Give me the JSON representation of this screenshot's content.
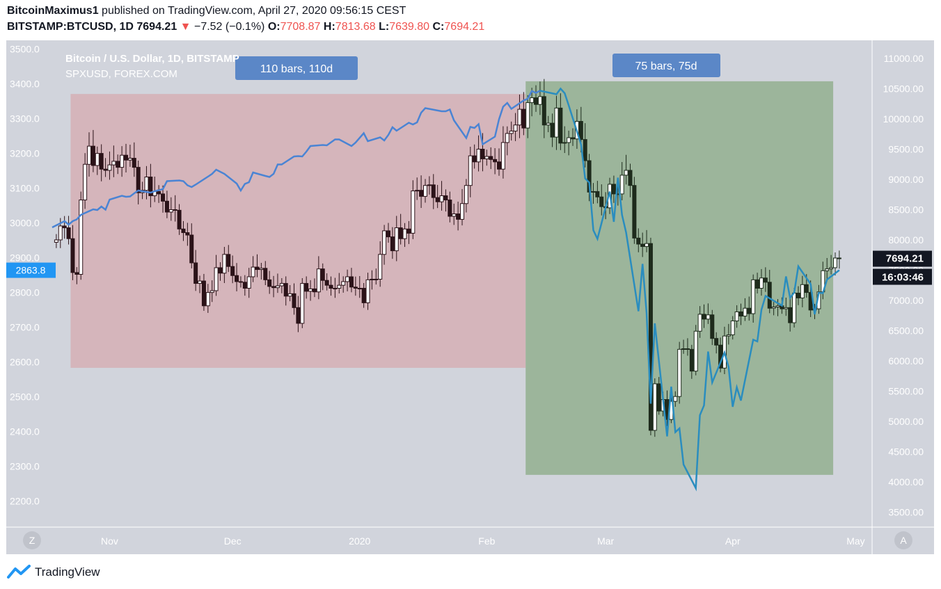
{
  "header": {
    "author": "BitcoinMaximus1",
    "published": "published on TradingView.com, April 27, 2020 09:56:15 CEST",
    "symbol": "BITSTAMP:BTCUSD, 1D",
    "last": "7694.21",
    "down_arrow": "▼",
    "change": "−7.52 (−0.1%)",
    "o_label": "O:",
    "o_val": "7708.87",
    "h_label": "H:",
    "h_val": "7813.68",
    "l_label": "L:",
    "l_val": "7639.80",
    "c_label": "C:",
    "c_val": "7694.21"
  },
  "legend": {
    "main": "Bitcoin / U.S. Dollar, 1D, BITSTAMP",
    "compare": "SPXUSD, FOREX.COM"
  },
  "ranges": [
    {
      "label": "110 bars, 110d",
      "color": "#d5b5bb",
      "start": "2019-10-23",
      "end": "2020-02-10"
    },
    {
      "label": "75 bars, 75d",
      "color": "#9cb59b",
      "start": "2020-02-11",
      "end": "2020-04-25"
    }
  ],
  "badges": {
    "left_value": "2863.8",
    "price": "7694.21",
    "countdown": "16:03:46",
    "z_button": "Z",
    "a_button": "A"
  },
  "footer": {
    "brand": "TradingView"
  },
  "colors": {
    "background": "#d1d4dc",
    "spx_line_before": "#4a84d4",
    "spx_line_after": "#2a8dbf",
    "candle_before": "#2b1218",
    "candle_after": "#1e2b1c",
    "label_box": "#5b87c7",
    "left_badge": "#2196f3",
    "right_badge": "#131722"
  },
  "chart_data": {
    "type": "candlestick",
    "title": "Bitcoin / U.S. Dollar, 1D, BITSTAMP",
    "left_axis": {
      "label": "SPXUSD",
      "ticks": [
        "3500.0",
        "3400.0",
        "3300.0",
        "3200.0",
        "3100.0",
        "3000.0",
        "2900.0",
        "2800.0",
        "2700.0",
        "2600.0",
        "2500.0",
        "2400.0",
        "2300.0",
        "2200.0"
      ],
      "ylim": [
        2125,
        3525
      ]
    },
    "right_axis": {
      "label": "BTCUSD",
      "ticks": [
        "11000.00",
        "10500.00",
        "10000.00",
        "9500.00",
        "9000.00",
        "8500.00",
        "8000.00",
        "7500.00",
        "7000.00",
        "6500.00",
        "6000.00",
        "5500.00",
        "5000.00",
        "4500.00",
        "4000.00",
        "3500.00"
      ],
      "ylim": [
        3250,
        11300
      ]
    },
    "x_axis": {
      "ticks": [
        "Nov",
        "Dec",
        "2020",
        "Feb",
        "Mar",
        "Apr",
        "May"
      ],
      "tick_dates": [
        "2019-11-01",
        "2019-12-01",
        "2020-01-01",
        "2020-02-01",
        "2020-03-01",
        "2020-04-01",
        "2020-05-01"
      ],
      "range": [
        "2019-10-18",
        "2020-05-05"
      ]
    },
    "btc_close": [
      [
        "2019-10-19",
        8000
      ],
      [
        "2019-10-20",
        8230
      ],
      [
        "2019-10-21",
        8200
      ],
      [
        "2019-10-22",
        8020
      ],
      [
        "2019-10-23",
        7460
      ],
      [
        "2019-10-24",
        7430
      ],
      [
        "2019-10-25",
        8660
      ],
      [
        "2019-10-26",
        9250
      ],
      [
        "2019-10-27",
        9550
      ],
      [
        "2019-10-28",
        9230
      ],
      [
        "2019-10-29",
        9430
      ],
      [
        "2019-10-30",
        9170
      ],
      [
        "2019-10-31",
        9150
      ],
      [
        "2019-11-01",
        9240
      ],
      [
        "2019-11-02",
        9300
      ],
      [
        "2019-11-03",
        9200
      ],
      [
        "2019-11-04",
        9400
      ],
      [
        "2019-11-05",
        9320
      ],
      [
        "2019-11-06",
        9350
      ],
      [
        "2019-11-07",
        9200
      ],
      [
        "2019-11-08",
        8780
      ],
      [
        "2019-11-09",
        8820
      ],
      [
        "2019-11-10",
        9040
      ],
      [
        "2019-11-11",
        8730
      ],
      [
        "2019-11-12",
        8800
      ],
      [
        "2019-11-13",
        8760
      ],
      [
        "2019-11-14",
        8640
      ],
      [
        "2019-11-15",
        8460
      ],
      [
        "2019-11-16",
        8500
      ],
      [
        "2019-11-17",
        8490
      ],
      [
        "2019-11-18",
        8180
      ],
      [
        "2019-11-19",
        8120
      ],
      [
        "2019-11-20",
        8080
      ],
      [
        "2019-11-21",
        7620
      ],
      [
        "2019-11-22",
        7280
      ],
      [
        "2019-11-23",
        7320
      ],
      [
        "2019-11-24",
        6910
      ],
      [
        "2019-11-25",
        7130
      ],
      [
        "2019-11-26",
        7160
      ],
      [
        "2019-11-27",
        7540
      ],
      [
        "2019-11-28",
        7450
      ],
      [
        "2019-11-29",
        7760
      ],
      [
        "2019-11-30",
        7560
      ],
      [
        "2019-12-01",
        7410
      ],
      [
        "2019-12-02",
        7310
      ],
      [
        "2019-12-03",
        7300
      ],
      [
        "2019-12-04",
        7200
      ],
      [
        "2019-12-05",
        7390
      ],
      [
        "2019-12-06",
        7550
      ],
      [
        "2019-12-07",
        7510
      ],
      [
        "2019-12-08",
        7530
      ],
      [
        "2019-12-09",
        7340
      ],
      [
        "2019-12-10",
        7230
      ],
      [
        "2019-12-11",
        7210
      ],
      [
        "2019-12-12",
        7240
      ],
      [
        "2019-12-13",
        7280
      ],
      [
        "2019-12-14",
        7070
      ],
      [
        "2019-12-15",
        7110
      ],
      [
        "2019-12-16",
        6880
      ],
      [
        "2019-12-17",
        6620
      ],
      [
        "2019-12-18",
        7280
      ],
      [
        "2019-12-19",
        7150
      ],
      [
        "2019-12-20",
        7190
      ],
      [
        "2019-12-21",
        7140
      ],
      [
        "2019-12-22",
        7520
      ],
      [
        "2019-12-23",
        7330
      ],
      [
        "2019-12-24",
        7250
      ],
      [
        "2019-12-25",
        7200
      ],
      [
        "2019-12-26",
        7200
      ],
      [
        "2019-12-27",
        7250
      ],
      [
        "2019-12-28",
        7310
      ],
      [
        "2019-12-29",
        7390
      ],
      [
        "2019-12-30",
        7220
      ],
      [
        "2019-12-31",
        7200
      ],
      [
        "2020-01-01",
        7200
      ],
      [
        "2020-01-02",
        6960
      ],
      [
        "2020-01-03",
        7340
      ],
      [
        "2020-01-04",
        7350
      ],
      [
        "2020-01-05",
        7350
      ],
      [
        "2020-01-06",
        7760
      ],
      [
        "2020-01-07",
        8150
      ],
      [
        "2020-01-08",
        8050
      ],
      [
        "2020-01-09",
        7820
      ],
      [
        "2020-01-10",
        8200
      ],
      [
        "2020-01-11",
        8020
      ],
      [
        "2020-01-12",
        8180
      ],
      [
        "2020-01-13",
        8110
      ],
      [
        "2020-01-14",
        8810
      ],
      [
        "2020-01-15",
        8820
      ],
      [
        "2020-01-16",
        8720
      ],
      [
        "2020-01-17",
        8900
      ],
      [
        "2020-01-18",
        8910
      ],
      [
        "2020-01-19",
        8700
      ],
      [
        "2020-01-20",
        8630
      ],
      [
        "2020-01-21",
        8730
      ],
      [
        "2020-01-22",
        8660
      ],
      [
        "2020-01-23",
        8390
      ],
      [
        "2020-01-24",
        8430
      ],
      [
        "2020-01-25",
        8340
      ],
      [
        "2020-01-26",
        8600
      ],
      [
        "2020-01-27",
        8900
      ],
      [
        "2020-01-28",
        9390
      ],
      [
        "2020-01-29",
        9290
      ],
      [
        "2020-01-30",
        9500
      ],
      [
        "2020-01-31",
        9340
      ],
      [
        "2020-02-01",
        9380
      ],
      [
        "2020-02-02",
        9330
      ],
      [
        "2020-02-03",
        9290
      ],
      [
        "2020-02-04",
        9170
      ],
      [
        "2020-02-05",
        9610
      ],
      [
        "2020-02-06",
        9760
      ],
      [
        "2020-02-07",
        9800
      ],
      [
        "2020-02-08",
        9900
      ],
      [
        "2020-02-09",
        10160
      ],
      [
        "2020-02-10",
        9850
      ],
      [
        "2020-02-11",
        10270
      ],
      [
        "2020-02-12",
        10350
      ],
      [
        "2020-02-13",
        10240
      ],
      [
        "2020-02-14",
        10370
      ],
      [
        "2020-02-15",
        9900
      ],
      [
        "2020-02-16",
        9930
      ],
      [
        "2020-02-17",
        9700
      ],
      [
        "2020-02-18",
        10180
      ],
      [
        "2020-02-19",
        9600
      ],
      [
        "2020-02-20",
        9610
      ],
      [
        "2020-02-21",
        9690
      ],
      [
        "2020-02-22",
        9670
      ],
      [
        "2020-02-23",
        9960
      ],
      [
        "2020-02-24",
        9660
      ],
      [
        "2020-02-25",
        9310
      ],
      [
        "2020-02-26",
        8790
      ],
      [
        "2020-02-27",
        8800
      ],
      [
        "2020-02-28",
        8710
      ],
      [
        "2020-02-29",
        8550
      ],
      [
        "2020-03-01",
        8530
      ],
      [
        "2020-03-02",
        8920
      ],
      [
        "2020-03-03",
        8760
      ],
      [
        "2020-03-04",
        8760
      ],
      [
        "2020-03-05",
        9070
      ],
      [
        "2020-03-06",
        9150
      ],
      [
        "2020-03-07",
        8900
      ],
      [
        "2020-03-08",
        8030
      ],
      [
        "2020-03-09",
        7930
      ],
      [
        "2020-03-10",
        7890
      ],
      [
        "2020-03-11",
        7940
      ],
      [
        "2020-03-12",
        4850
      ],
      [
        "2020-03-13",
        5620
      ],
      [
        "2020-03-14",
        5170
      ],
      [
        "2020-03-15",
        5360
      ],
      [
        "2020-03-16",
        5030
      ],
      [
        "2020-03-17",
        5330
      ],
      [
        "2020-03-18",
        5410
      ],
      [
        "2020-03-19",
        6190
      ],
      [
        "2020-03-20",
        6200
      ],
      [
        "2020-03-21",
        6190
      ],
      [
        "2020-03-22",
        5830
      ],
      [
        "2020-03-23",
        6490
      ],
      [
        "2020-03-24",
        6770
      ],
      [
        "2020-03-25",
        6690
      ],
      [
        "2020-03-26",
        6760
      ],
      [
        "2020-03-27",
        6370
      ],
      [
        "2020-03-28",
        6260
      ],
      [
        "2020-03-29",
        5880
      ],
      [
        "2020-03-30",
        6410
      ],
      [
        "2020-03-31",
        6430
      ],
      [
        "2020-04-01",
        6660
      ],
      [
        "2020-04-02",
        6810
      ],
      [
        "2020-04-03",
        6740
      ],
      [
        "2020-04-04",
        6870
      ],
      [
        "2020-04-05",
        6780
      ],
      [
        "2020-04-06",
        7340
      ],
      [
        "2020-04-07",
        7200
      ],
      [
        "2020-04-08",
        7370
      ],
      [
        "2020-04-09",
        7300
      ],
      [
        "2020-04-10",
        6870
      ],
      [
        "2020-04-11",
        6890
      ],
      [
        "2020-04-12",
        6910
      ],
      [
        "2020-04-13",
        6860
      ],
      [
        "2020-04-14",
        6880
      ],
      [
        "2020-04-15",
        6630
      ],
      [
        "2020-04-16",
        7120
      ],
      [
        "2020-04-17",
        7040
      ],
      [
        "2020-04-18",
        7260
      ],
      [
        "2020-04-19",
        7130
      ],
      [
        "2020-04-20",
        6840
      ],
      [
        "2020-04-21",
        6860
      ],
      [
        "2020-04-22",
        7140
      ],
      [
        "2020-04-23",
        7490
      ],
      [
        "2020-04-24",
        7520
      ],
      [
        "2020-04-25",
        7540
      ],
      [
        "2020-04-26",
        7700
      ],
      [
        "2020-04-27",
        7694.21
      ]
    ],
    "spx_close": [
      [
        "2019-10-18",
        2987
      ],
      [
        "2019-10-21",
        3005
      ],
      [
        "2019-10-22",
        2995
      ],
      [
        "2019-10-23",
        3005
      ],
      [
        "2019-10-24",
        3010
      ],
      [
        "2019-10-25",
        3023
      ],
      [
        "2019-10-28",
        3039
      ],
      [
        "2019-10-29",
        3037
      ],
      [
        "2019-10-30",
        3047
      ],
      [
        "2019-10-31",
        3038
      ],
      [
        "2019-11-01",
        3067
      ],
      [
        "2019-11-04",
        3078
      ],
      [
        "2019-11-05",
        3075
      ],
      [
        "2019-11-06",
        3076
      ],
      [
        "2019-11-07",
        3085
      ],
      [
        "2019-11-08",
        3093
      ],
      [
        "2019-11-11",
        3087
      ],
      [
        "2019-11-12",
        3091
      ],
      [
        "2019-11-13",
        3094
      ],
      [
        "2019-11-14",
        3097
      ],
      [
        "2019-11-15",
        3120
      ],
      [
        "2019-11-18",
        3122
      ],
      [
        "2019-11-19",
        3120
      ],
      [
        "2019-11-20",
        3108
      ],
      [
        "2019-11-21",
        3103
      ],
      [
        "2019-11-22",
        3110
      ],
      [
        "2019-11-25",
        3133
      ],
      [
        "2019-11-26",
        3141
      ],
      [
        "2019-11-27",
        3153
      ],
      [
        "2019-11-29",
        3141
      ],
      [
        "2019-12-02",
        3113
      ],
      [
        "2019-12-03",
        3093
      ],
      [
        "2019-12-04",
        3112
      ],
      [
        "2019-12-05",
        3117
      ],
      [
        "2019-12-06",
        3145
      ],
      [
        "2019-12-09",
        3135
      ],
      [
        "2019-12-10",
        3132
      ],
      [
        "2019-12-11",
        3141
      ],
      [
        "2019-12-12",
        3168
      ],
      [
        "2019-12-13",
        3168
      ],
      [
        "2019-12-16",
        3191
      ],
      [
        "2019-12-17",
        3192
      ],
      [
        "2019-12-18",
        3191
      ],
      [
        "2019-12-19",
        3205
      ],
      [
        "2019-12-20",
        3221
      ],
      [
        "2019-12-23",
        3224
      ],
      [
        "2019-12-24",
        3223
      ],
      [
        "2019-12-26",
        3240
      ],
      [
        "2019-12-27",
        3240
      ],
      [
        "2019-12-30",
        3221
      ],
      [
        "2019-12-31",
        3231
      ],
      [
        "2020-01-02",
        3258
      ],
      [
        "2020-01-03",
        3235
      ],
      [
        "2020-01-06",
        3246
      ],
      [
        "2020-01-07",
        3237
      ],
      [
        "2020-01-08",
        3253
      ],
      [
        "2020-01-09",
        3275
      ],
      [
        "2020-01-10",
        3265
      ],
      [
        "2020-01-13",
        3288
      ],
      [
        "2020-01-14",
        3283
      ],
      [
        "2020-01-15",
        3289
      ],
      [
        "2020-01-16",
        3317
      ],
      [
        "2020-01-17",
        3330
      ],
      [
        "2020-01-21",
        3321
      ],
      [
        "2020-01-22",
        3321
      ],
      [
        "2020-01-23",
        3326
      ],
      [
        "2020-01-24",
        3295
      ],
      [
        "2020-01-27",
        3244
      ],
      [
        "2020-01-28",
        3276
      ],
      [
        "2020-01-29",
        3273
      ],
      [
        "2020-01-30",
        3284
      ],
      [
        "2020-01-31",
        3226
      ],
      [
        "2020-02-03",
        3248
      ],
      [
        "2020-02-04",
        3298
      ],
      [
        "2020-02-05",
        3334
      ],
      [
        "2020-02-06",
        3345
      ],
      [
        "2020-02-07",
        3328
      ],
      [
        "2020-02-10",
        3352
      ],
      [
        "2020-02-11",
        3357
      ],
      [
        "2020-02-12",
        3379
      ],
      [
        "2020-02-13",
        3374
      ],
      [
        "2020-02-14",
        3380
      ],
      [
        "2020-02-18",
        3370
      ],
      [
        "2020-02-19",
        3386
      ],
      [
        "2020-02-20",
        3373
      ],
      [
        "2020-02-21",
        3338
      ],
      [
        "2020-02-24",
        3226
      ],
      [
        "2020-02-25",
        3128
      ],
      [
        "2020-02-26",
        3116
      ],
      [
        "2020-02-27",
        2979
      ],
      [
        "2020-02-28",
        2954
      ],
      [
        "2020-03-02",
        3090
      ],
      [
        "2020-03-03",
        3003
      ],
      [
        "2020-03-04",
        3130
      ],
      [
        "2020-03-05",
        3023
      ],
      [
        "2020-03-06",
        2972
      ],
      [
        "2020-03-09",
        2746
      ],
      [
        "2020-03-10",
        2882
      ],
      [
        "2020-03-11",
        2741
      ],
      [
        "2020-03-12",
        2480
      ],
      [
        "2020-03-13",
        2711
      ],
      [
        "2020-03-16",
        2386
      ],
      [
        "2020-03-17",
        2529
      ],
      [
        "2020-03-18",
        2398
      ],
      [
        "2020-03-19",
        2409
      ],
      [
        "2020-03-20",
        2305
      ],
      [
        "2020-03-23",
        2237
      ],
      [
        "2020-03-24",
        2447
      ],
      [
        "2020-03-25",
        2475
      ],
      [
        "2020-03-26",
        2630
      ],
      [
        "2020-03-27",
        2541
      ],
      [
        "2020-03-30",
        2627
      ],
      [
        "2020-03-31",
        2585
      ],
      [
        "2020-04-01",
        2471
      ],
      [
        "2020-04-02",
        2527
      ],
      [
        "2020-04-03",
        2489
      ],
      [
        "2020-04-06",
        2664
      ],
      [
        "2020-04-07",
        2659
      ],
      [
        "2020-04-08",
        2750
      ],
      [
        "2020-04-09",
        2790
      ],
      [
        "2020-04-13",
        2762
      ],
      [
        "2020-04-14",
        2846
      ],
      [
        "2020-04-15",
        2784
      ],
      [
        "2020-04-16",
        2800
      ],
      [
        "2020-04-17",
        2875
      ],
      [
        "2020-04-20",
        2824
      ],
      [
        "2020-04-21",
        2737
      ],
      [
        "2020-04-22",
        2799
      ],
      [
        "2020-04-23",
        2798
      ],
      [
        "2020-04-24",
        2837
      ],
      [
        "2020-04-27",
        2864
      ]
    ]
  }
}
